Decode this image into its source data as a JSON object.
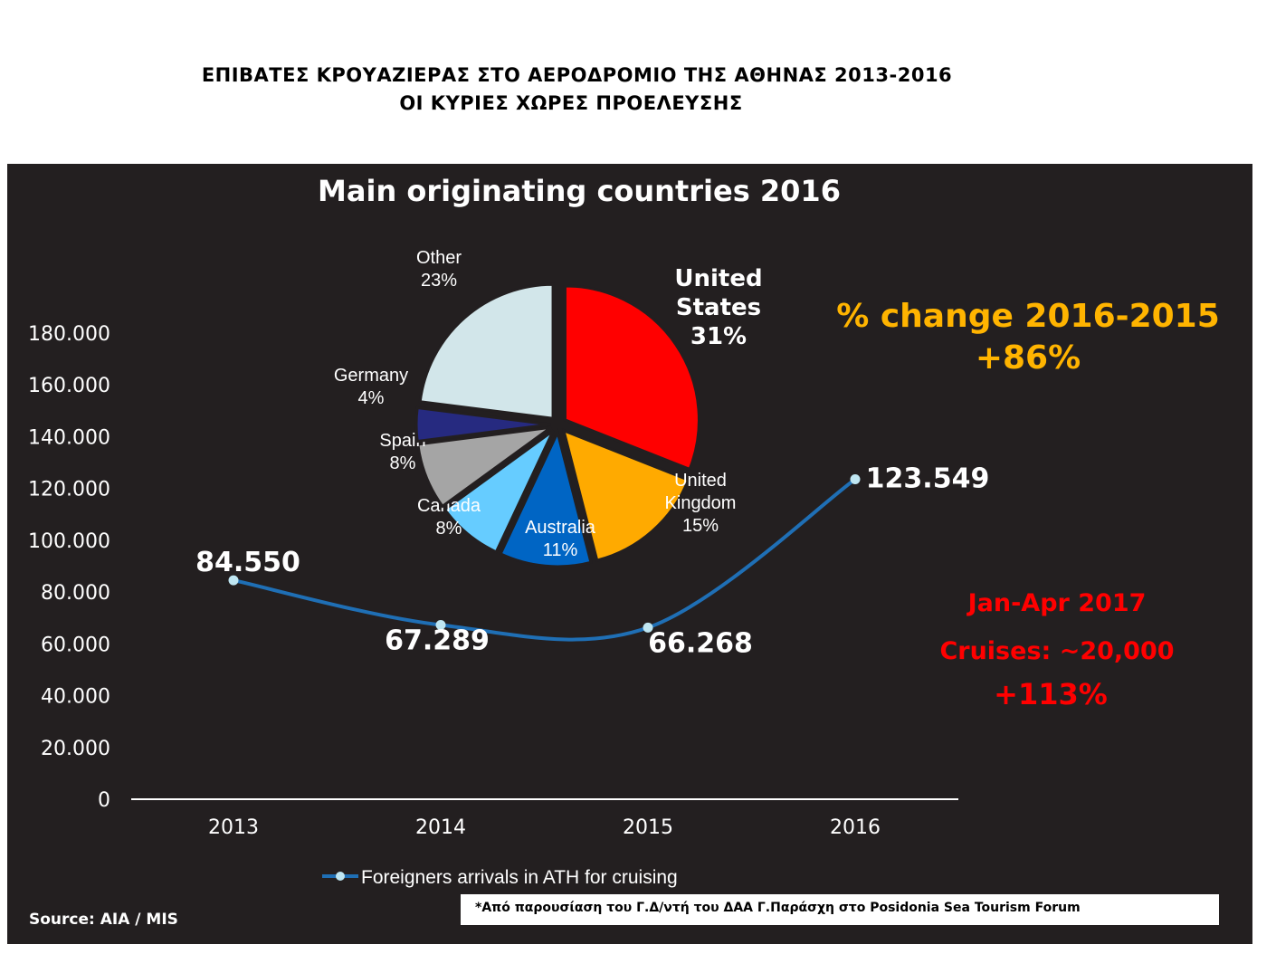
{
  "header": {
    "line1": "ΕΠΙΒΑΤΕΣ  ΚΡΟΥΑΖΙΕΡΑΣ ΣΤΟ ΑΕΡΟΔΡΟΜΙΟ ΤΗΣ ΑΘΗΝΑΣ 2013-2016",
    "line2": "ΟΙ ΚΥΡΙΕΣ ΧΩΡΕΣ ΠΡΟΕΛΕΥΣΗΣ"
  },
  "chart_data": [
    {
      "type": "line",
      "categories": [
        "2013",
        "2014",
        "2015",
        "2016"
      ],
      "series": [
        {
          "name": "Foreigners arrivals in ATH for cruising",
          "values": [
            84550,
            67289,
            66268,
            123549
          ],
          "value_labels": [
            "84.550",
            "67.289",
            "66.268",
            "123.549"
          ]
        }
      ],
      "ylim": [
        0,
        180000
      ],
      "yticks": [
        0,
        20000,
        40000,
        60000,
        80000,
        100000,
        120000,
        140000,
        160000,
        180000
      ],
      "ytick_labels": [
        "0",
        "20.000",
        "40.000",
        "60.000",
        "80.000",
        "100.000",
        "120.000",
        "140.000",
        "160.000",
        "180.000"
      ],
      "legend_position": "bottom",
      "line_color": "#1f6fb5",
      "marker_color": "#bfe6f2"
    },
    {
      "type": "pie",
      "title": "Main originating countries 2016",
      "slices": [
        {
          "label": "United States",
          "pct_label": "31%",
          "value": 31,
          "color": "#ff0000"
        },
        {
          "label": "United Kingdom",
          "pct_label": "15%",
          "value": 15,
          "color": "#ffaa00"
        },
        {
          "label": "Australia",
          "pct_label": "11%",
          "value": 11,
          "color": "#0065c4"
        },
        {
          "label": "Canada",
          "pct_label": "8%",
          "value": 8,
          "color": "#66ccff"
        },
        {
          "label": "Spain",
          "pct_label": "8%",
          "value": 8,
          "color": "#a5a5a5"
        },
        {
          "label": "Germany",
          "pct_label": "4%",
          "value": 4,
          "color": "#262a80"
        },
        {
          "label": "Other",
          "pct_label": "23%",
          "value": 23,
          "color": "#d2e6ea"
        }
      ]
    }
  ],
  "annotations": {
    "change_label": "% change 2016-2015",
    "change_value": "+86%",
    "change_color": "#ffb400",
    "jan_apr": "Jan-Apr 2017",
    "cruises": "Cruises: ~20,000",
    "cruises_change": "+113%",
    "red_color": "#ff0000"
  },
  "footer": {
    "source": "Source:  AIA / MIS",
    "note": "*Από παρουσίαση του Γ.Δ/ντή του ΔΑΑ Γ.Παράσχη στο Posidonia Sea Tourism Forum"
  }
}
